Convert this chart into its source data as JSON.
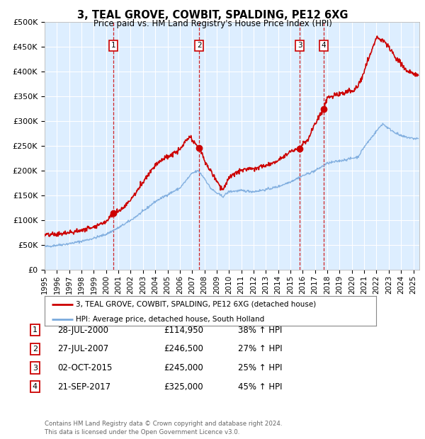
{
  "title": "3, TEAL GROVE, COWBIT, SPALDING, PE12 6XG",
  "subtitle": "Price paid vs. HM Land Registry's House Price Index (HPI)",
  "ylim": [
    0,
    500000
  ],
  "yticks": [
    0,
    50000,
    100000,
    150000,
    200000,
    250000,
    300000,
    350000,
    400000,
    450000,
    500000
  ],
  "xlim_start": 1995.0,
  "xlim_end": 2025.5,
  "background_color": "#ffffff",
  "plot_bg_color": "#ddeeff",
  "grid_color": "#ffffff",
  "red_line_color": "#cc0000",
  "blue_line_color": "#7aaadd",
  "sale_markers": [
    {
      "year": 2000.57,
      "price": 114950,
      "label": "1"
    },
    {
      "year": 2007.57,
      "price": 246500,
      "label": "2"
    },
    {
      "year": 2015.75,
      "price": 245000,
      "label": "3"
    },
    {
      "year": 2017.72,
      "price": 325000,
      "label": "4"
    }
  ],
  "vline_color": "#cc0000",
  "legend_entries": [
    "3, TEAL GROVE, COWBIT, SPALDING, PE12 6XG (detached house)",
    "HPI: Average price, detached house, South Holland"
  ],
  "table_rows": [
    [
      "1",
      "28-JUL-2000",
      "£114,950",
      "38% ↑ HPI"
    ],
    [
      "2",
      "27-JUL-2007",
      "£246,500",
      "27% ↑ HPI"
    ],
    [
      "3",
      "02-OCT-2015",
      "£245,000",
      "25% ↑ HPI"
    ],
    [
      "4",
      "21-SEP-2017",
      "£325,000",
      "45% ↑ HPI"
    ]
  ],
  "footer": "Contains HM Land Registry data © Crown copyright and database right 2024.\nThis data is licensed under the Open Government Licence v3.0.",
  "hpi_anchors_y": [
    1995,
    1996,
    1997,
    1998,
    1999,
    2000,
    2001,
    2002,
    2003,
    2004,
    2005,
    2006,
    2007,
    2007.5,
    2008,
    2008.5,
    2009,
    2009.5,
    2010,
    2011,
    2012,
    2013,
    2014,
    2015,
    2016,
    2017,
    2018,
    2019,
    2020,
    2020.5,
    2021,
    2022,
    2022.5,
    2023,
    2024,
    2025
  ],
  "hpi_anchors_v": [
    47000,
    50000,
    53000,
    58000,
    64000,
    72000,
    85000,
    100000,
    118000,
    138000,
    152000,
    165000,
    195000,
    200000,
    185000,
    165000,
    155000,
    148000,
    158000,
    160000,
    158000,
    162000,
    168000,
    178000,
    190000,
    200000,
    215000,
    220000,
    225000,
    228000,
    248000,
    280000,
    295000,
    285000,
    270000,
    265000
  ],
  "prop_anchors_y": [
    1995,
    1996,
    1997,
    1998,
    1999,
    1999.5,
    2000,
    2000.57,
    2001,
    2001.5,
    2002,
    2002.5,
    2003,
    2003.5,
    2004,
    2004.5,
    2005,
    2005.5,
    2006,
    2006.5,
    2006.8,
    2007,
    2007.3,
    2007.57,
    2007.8,
    2008,
    2008.5,
    2009,
    2009.5,
    2010,
    2010.5,
    2011,
    2011.5,
    2012,
    2012.5,
    2013,
    2013.5,
    2014,
    2014.5,
    2015,
    2015.75,
    2016,
    2016.5,
    2017,
    2017.72,
    2018,
    2018.5,
    2019,
    2019.5,
    2020,
    2020.5,
    2021,
    2021.5,
    2022,
    2022.3,
    2022.6,
    2023,
    2023.5,
    2024,
    2024.5,
    2025
  ],
  "prop_anchors_v": [
    70000,
    72000,
    75000,
    80000,
    88000,
    92000,
    98000,
    114950,
    118000,
    128000,
    142000,
    158000,
    178000,
    195000,
    212000,
    222000,
    228000,
    235000,
    242000,
    260000,
    268000,
    262000,
    252000,
    246500,
    235000,
    220000,
    200000,
    180000,
    162000,
    185000,
    195000,
    200000,
    205000,
    205000,
    208000,
    210000,
    215000,
    222000,
    230000,
    240000,
    245000,
    255000,
    265000,
    295000,
    325000,
    348000,
    350000,
    355000,
    358000,
    360000,
    370000,
    400000,
    435000,
    470000,
    465000,
    462000,
    448000,
    430000,
    415000,
    400000,
    395000
  ]
}
